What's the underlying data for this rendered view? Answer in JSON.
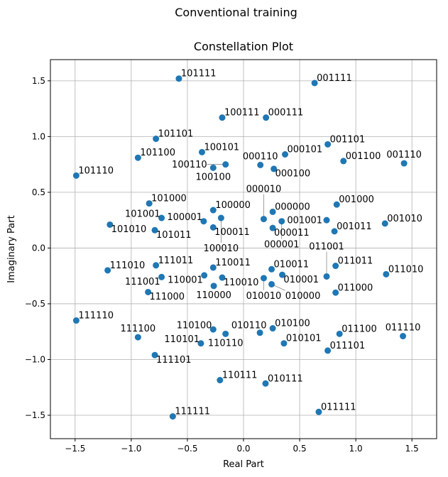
{
  "suptitle": "Conventional training",
  "chart_data": {
    "type": "scatter",
    "title": "Constellation Plot",
    "xlabel": "Real Part",
    "ylabel": "Imaginary Part",
    "xlim": [
      -1.72,
      1.72
    ],
    "ylim": [
      -1.71,
      1.69
    ],
    "xticks": [
      -1.5,
      -1.0,
      -0.5,
      0.0,
      0.5,
      1.0,
      1.5
    ],
    "yticks": [
      -1.5,
      -1.0,
      -0.5,
      0.0,
      0.5,
      1.0,
      1.5
    ],
    "grid": true,
    "marker_color": "#1f77b4",
    "points": [
      {
        "label": "101111",
        "x": -0.576,
        "y": 1.52
      },
      {
        "label": "001111",
        "x": 0.633,
        "y": 1.48
      },
      {
        "label": "100111",
        "x": -0.19,
        "y": 1.17
      },
      {
        "label": "000111",
        "x": 0.2,
        "y": 1.17
      },
      {
        "label": "101101",
        "x": -0.78,
        "y": 0.98
      },
      {
        "label": "001101",
        "x": 0.75,
        "y": 0.93
      },
      {
        "label": "101100",
        "x": -0.94,
        "y": 0.81
      },
      {
        "label": "100101",
        "x": -0.37,
        "y": 0.86
      },
      {
        "label": "000101",
        "x": 0.37,
        "y": 0.84
      },
      {
        "label": "001100",
        "x": 0.89,
        "y": 0.78
      },
      {
        "label": "001110",
        "x": 1.43,
        "y": 0.76
      },
      {
        "label": "101110",
        "x": -1.49,
        "y": 0.65
      },
      {
        "label": "100100",
        "x": -0.27,
        "y": 0.72
      },
      {
        "label": "100110",
        "x": -0.16,
        "y": 0.75
      },
      {
        "label": "000110",
        "x": 0.15,
        "y": 0.745
      },
      {
        "label": "000100",
        "x": 0.27,
        "y": 0.71
      },
      {
        "label": "101000",
        "x": -0.84,
        "y": 0.4
      },
      {
        "label": "001000",
        "x": 0.83,
        "y": 0.39
      },
      {
        "label": "100000",
        "x": -0.27,
        "y": 0.34
      },
      {
        "label": "000000",
        "x": 0.26,
        "y": 0.325
      },
      {
        "label": "101001",
        "x": -0.73,
        "y": 0.27
      },
      {
        "label": "101010",
        "x": -1.19,
        "y": 0.21
      },
      {
        "label": "100001",
        "x": -0.355,
        "y": 0.24
      },
      {
        "label": "100010",
        "x": -0.2,
        "y": 0.27
      },
      {
        "label": "000010",
        "x": 0.18,
        "y": 0.26
      },
      {
        "label": "000001",
        "x": 0.34,
        "y": 0.24
      },
      {
        "label": "001001",
        "x": 0.74,
        "y": 0.25
      },
      {
        "label": "001010",
        "x": 1.26,
        "y": 0.22
      },
      {
        "label": "101011",
        "x": -0.79,
        "y": 0.16
      },
      {
        "label": "100011",
        "x": -0.27,
        "y": 0.185
      },
      {
        "label": "000011",
        "x": 0.26,
        "y": 0.18
      },
      {
        "label": "001011",
        "x": 0.81,
        "y": 0.15
      },
      {
        "label": "111010",
        "x": -1.21,
        "y": -0.2
      },
      {
        "label": "111011",
        "x": -0.78,
        "y": -0.155
      },
      {
        "label": "111001",
        "x": -0.73,
        "y": -0.26
      },
      {
        "label": "111000",
        "x": -0.85,
        "y": -0.395
      },
      {
        "label": "110011",
        "x": -0.27,
        "y": -0.175
      },
      {
        "label": "110001",
        "x": -0.35,
        "y": -0.245
      },
      {
        "label": "110010",
        "x": -0.19,
        "y": -0.265
      },
      {
        "label": "110000",
        "x": -0.265,
        "y": -0.34
      },
      {
        "label": "010011",
        "x": 0.25,
        "y": -0.19
      },
      {
        "label": "010001",
        "x": 0.345,
        "y": -0.24
      },
      {
        "label": "010010",
        "x": 0.18,
        "y": -0.27
      },
      {
        "label": "010000",
        "x": 0.25,
        "y": -0.325
      },
      {
        "label": "011011",
        "x": 0.82,
        "y": -0.16
      },
      {
        "label": "011001",
        "x": 0.74,
        "y": -0.255
      },
      {
        "label": "011010",
        "x": 1.27,
        "y": -0.235
      },
      {
        "label": "011000",
        "x": 0.82,
        "y": -0.4
      },
      {
        "label": "111110",
        "x": -1.49,
        "y": -0.65
      },
      {
        "label": "110100",
        "x": -0.27,
        "y": -0.73
      },
      {
        "label": "110110",
        "x": -0.16,
        "y": -0.77
      },
      {
        "label": "010110",
        "x": 0.146,
        "y": -0.76
      },
      {
        "label": "010100",
        "x": 0.26,
        "y": -0.72
      },
      {
        "label": "111100",
        "x": -0.94,
        "y": -0.8
      },
      {
        "label": "110101",
        "x": -0.38,
        "y": -0.855
      },
      {
        "label": "010101",
        "x": 0.36,
        "y": -0.855
      },
      {
        "label": "011100",
        "x": 0.855,
        "y": -0.77
      },
      {
        "label": "011110",
        "x": 1.42,
        "y": -0.79
      },
      {
        "label": "111101",
        "x": -0.79,
        "y": -0.96
      },
      {
        "label": "011101",
        "x": 0.75,
        "y": -0.92
      },
      {
        "label": "110111",
        "x": -0.21,
        "y": -1.185
      },
      {
        "label": "010111",
        "x": 0.196,
        "y": -1.215
      },
      {
        "label": "011111",
        "x": 0.67,
        "y": -1.47
      },
      {
        "label": "111111",
        "x": -0.63,
        "y": -1.51
      }
    ]
  }
}
